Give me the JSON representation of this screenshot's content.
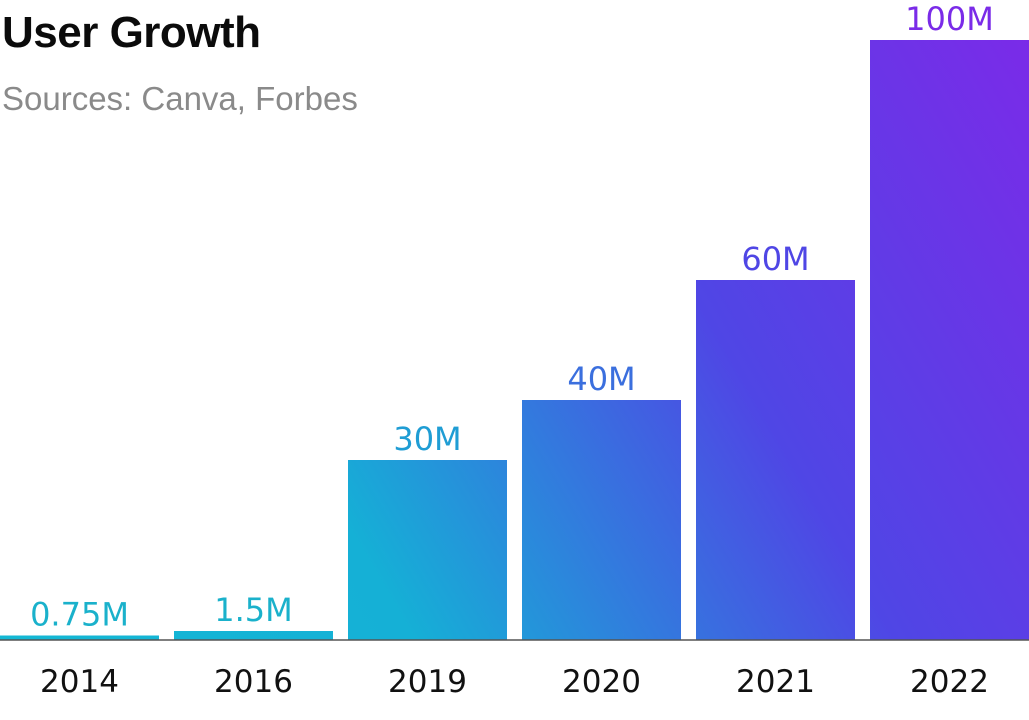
{
  "chart_data": {
    "type": "bar",
    "title": "User Growth",
    "subtitle": "Sources: Canva, Forbes",
    "xlabel": "",
    "ylabel": "",
    "categories": [
      "2014",
      "2016",
      "2019",
      "2020",
      "2021",
      "2022"
    ],
    "values": [
      0.75,
      1.5,
      30,
      40,
      60,
      100
    ],
    "value_labels": [
      "0.75M",
      "1.5M",
      "30M",
      "40M",
      "60M",
      "100M"
    ],
    "unit": "M",
    "ylim": [
      0,
      100
    ],
    "grid": false,
    "legend": "none",
    "colors": {
      "gradient_start": "#14b8d4",
      "gradient_mid": "#4f46e5",
      "gradient_end": "#7a2be8",
      "label_colors": [
        "#1ab1cb",
        "#1ab1cb",
        "#1f9dd4",
        "#3b6fde",
        "#4f46e5",
        "#7a2be8"
      ],
      "axis": "#555555"
    }
  }
}
